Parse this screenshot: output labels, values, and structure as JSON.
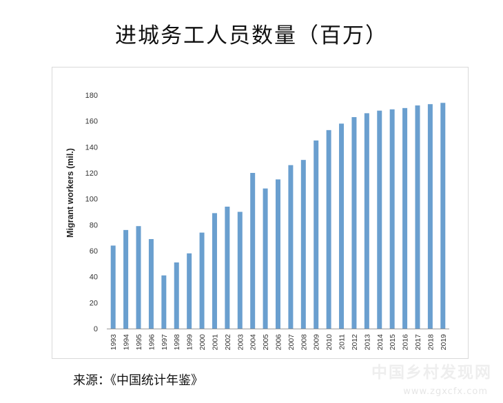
{
  "title": "进城务工人员数量（百万）",
  "source": "来源：《中国统计年鉴》",
  "watermark": {
    "text": "中国乡村发现网",
    "url": "www.zgxcfx.com"
  },
  "chart_data": {
    "type": "bar",
    "ylabel": "Migrant workers (mil.)",
    "xlabel": "",
    "ylim": [
      0,
      180
    ],
    "yticks": [
      0,
      20,
      40,
      60,
      80,
      100,
      120,
      140,
      160,
      180
    ],
    "grid": false,
    "legend": "none",
    "bar_color": "#6a9fcf",
    "categories": [
      "1993",
      "1994",
      "1995",
      "1996",
      "1997",
      "1998",
      "1999",
      "2000",
      "2001",
      "2002",
      "2003",
      "2004",
      "2005",
      "2006",
      "2007",
      "2008",
      "2009",
      "2010",
      "2011",
      "2012",
      "2013",
      "2014",
      "2015",
      "2016",
      "2017",
      "2018",
      "2019"
    ],
    "values": [
      64,
      76,
      79,
      69,
      41,
      51,
      58,
      74,
      89,
      94,
      90,
      120,
      108,
      115,
      126,
      130,
      145,
      153,
      158,
      163,
      166,
      168,
      169,
      170,
      172,
      173,
      174
    ]
  }
}
